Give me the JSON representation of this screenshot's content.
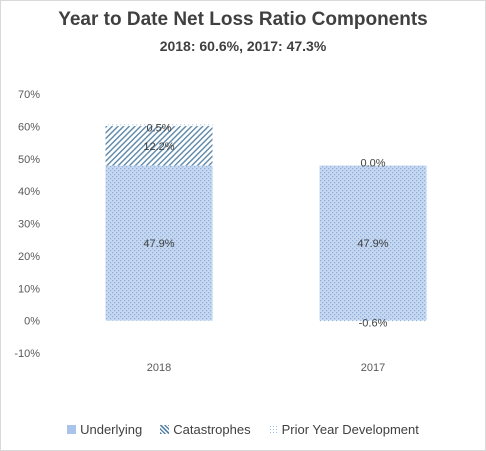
{
  "chart_title": "Year to Date Net Loss Ratio Components",
  "chart_subtitle": "2018: 60.6%, 2017: 47.3%",
  "chart_data": {
    "type": "bar",
    "stacked": true,
    "categories": [
      "2018",
      "2017"
    ],
    "series": [
      {
        "name": "Underlying",
        "values": [
          47.9,
          47.9
        ],
        "color": "#a9c4eb",
        "pattern": "dots"
      },
      {
        "name": "Catastrophes",
        "values": [
          12.2,
          0.0
        ],
        "color": "#5b87a8",
        "pattern": "diagonal-hatch"
      },
      {
        "name": "Prior Year Development",
        "values": [
          0.5,
          -0.6
        ],
        "color": "#a9c4eb",
        "pattern": "sparse-dots"
      }
    ],
    "data_labels": [
      [
        "47.9%",
        "47.9%"
      ],
      [
        "12.2%",
        ""
      ],
      [
        "0.5%",
        "-0.6%"
      ]
    ],
    "top_label_2017": "0.0%",
    "ylim": [
      -10,
      70
    ],
    "yticks": [
      -10,
      0,
      10,
      20,
      30,
      40,
      50,
      60,
      70
    ],
    "ytick_labels": [
      "-10%",
      "0%",
      "10%",
      "20%",
      "30%",
      "40%",
      "50%",
      "60%",
      "70%"
    ],
    "xlabel": "",
    "ylabel": "",
    "grid": false,
    "legend_position": "bottom"
  }
}
